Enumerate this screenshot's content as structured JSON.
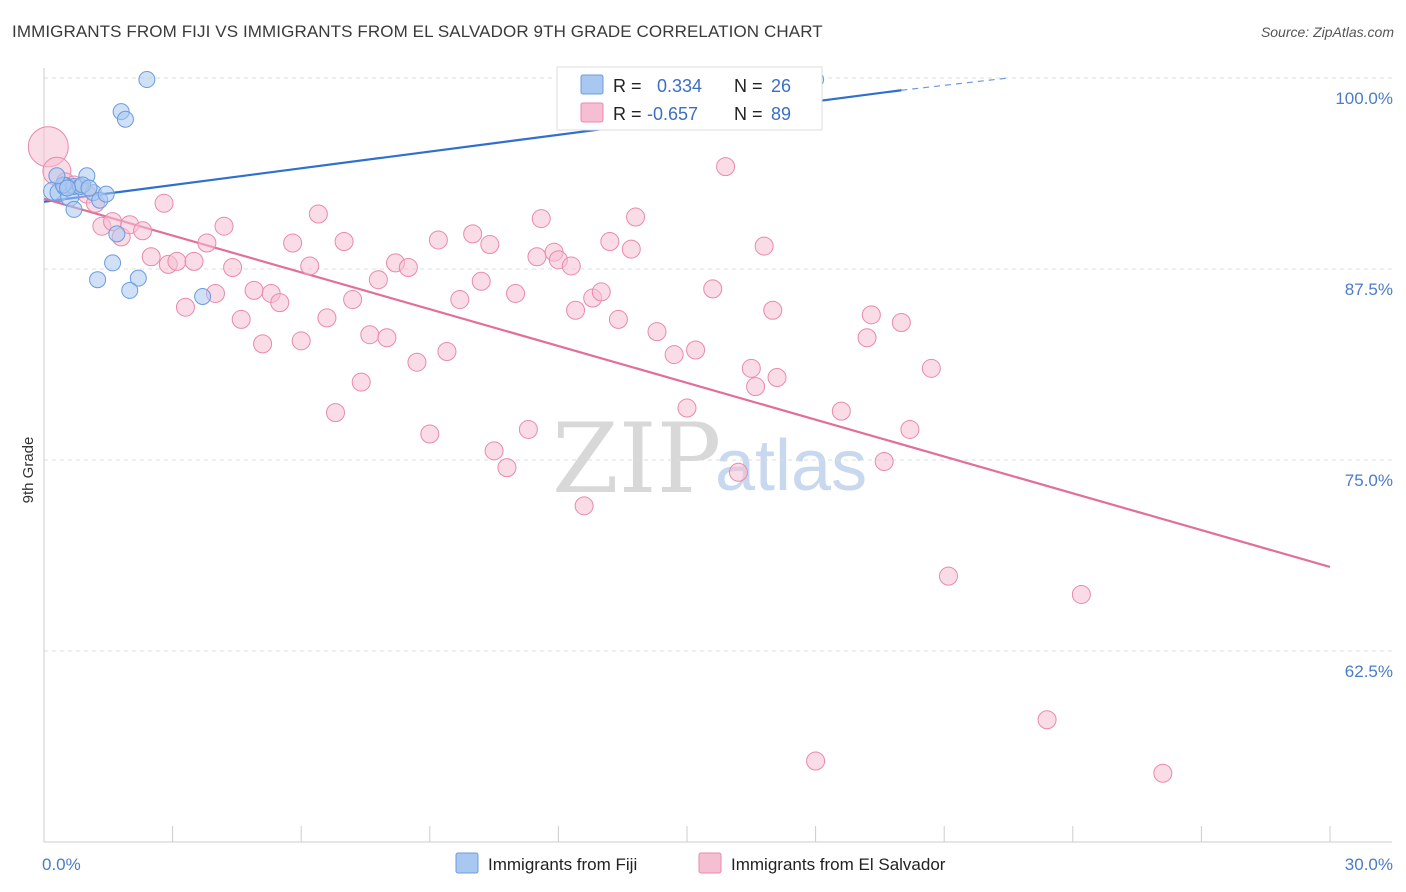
{
  "title": "IMMIGRANTS FROM FIJI VS IMMIGRANTS FROM EL SALVADOR 9TH GRADE CORRELATION CHART",
  "source": "Source: ZipAtlas.com",
  "watermark": {
    "zip": "ZIP",
    "atlas": "atlas"
  },
  "colors": {
    "fiji_fill": "#a9c8f0",
    "fiji_stroke": "#6a9be0",
    "fiji_line": "#2e6fd0",
    "elsal_fill": "#f6bfd1",
    "elsal_stroke": "#e98aaa",
    "elsal_line": "#e0709a",
    "grid": "#dddddd",
    "tick_text": "#4a7cc9"
  },
  "legend_box": {
    "rows": [
      {
        "r_label": "R =",
        "r_value": "0.334",
        "n_label": "N =",
        "n_value": "26"
      },
      {
        "r_label": "R =",
        "r_value": "-0.657",
        "n_label": "N =",
        "n_value": "89"
      }
    ]
  },
  "chart_data": {
    "type": "scatter",
    "title": "IMMIGRANTS FROM FIJI VS IMMIGRANTS FROM EL SALVADOR 9TH GRADE CORRELATION CHART",
    "xlabel": "",
    "ylabel": "9th Grade",
    "xlim": [
      0,
      30
    ],
    "ylim": [
      50,
      100
    ],
    "x_tick_labels": [
      "0.0%",
      "30.0%"
    ],
    "y_tick_labels": [
      "100.0%",
      "87.5%",
      "75.0%",
      "62.5%"
    ],
    "y_tick_values": [
      100,
      87.5,
      75,
      62.5
    ],
    "series": [
      {
        "name": "Immigrants from Fiji",
        "r": 0.334,
        "n": 26,
        "trend": {
          "x0": 0,
          "y0": 91.9,
          "x1": 20,
          "y1": 99.2,
          "dash_to_x": 22.5,
          "dash_to_y": 100.0
        },
        "points": [
          [
            0.2,
            92.6,
            9
          ],
          [
            0.35,
            92.5,
            9
          ],
          [
            0.5,
            92.9,
            9
          ],
          [
            0.6,
            92.2,
            9
          ],
          [
            0.7,
            92.9,
            8
          ],
          [
            0.85,
            92.9,
            8
          ],
          [
            1.0,
            93.6,
            8
          ],
          [
            1.15,
            92.5,
            8
          ],
          [
            1.3,
            92.0,
            8
          ],
          [
            1.45,
            92.4,
            8
          ],
          [
            0.7,
            91.4,
            8
          ],
          [
            1.7,
            89.8,
            8
          ],
          [
            1.6,
            87.9,
            8
          ],
          [
            1.25,
            86.8,
            8
          ],
          [
            2.2,
            86.9,
            8
          ],
          [
            2.0,
            86.1,
            8
          ],
          [
            3.7,
            85.7,
            8
          ],
          [
            1.8,
            97.8,
            8
          ],
          [
            1.9,
            97.3,
            8
          ],
          [
            2.4,
            99.9,
            8
          ],
          [
            18.0,
            99.9,
            8
          ],
          [
            0.45,
            93.0,
            8
          ],
          [
            0.3,
            93.6,
            8
          ],
          [
            0.9,
            93.0,
            8
          ],
          [
            0.55,
            92.8,
            8
          ],
          [
            1.05,
            92.8,
            8
          ]
        ]
      },
      {
        "name": "Immigrants from El Salvador",
        "r": -0.657,
        "n": 89,
        "trend": {
          "x0": 0,
          "y0": 92.1,
          "x1": 30,
          "y1": 68.0
        },
        "points": [
          [
            0.1,
            95.5,
            20
          ],
          [
            0.3,
            93.9,
            14
          ],
          [
            0.5,
            93.2,
            9
          ],
          [
            0.7,
            93.0,
            9
          ],
          [
            1.0,
            92.4,
            9
          ],
          [
            1.2,
            91.8,
            9
          ],
          [
            1.35,
            90.3,
            9
          ],
          [
            1.6,
            90.6,
            9
          ],
          [
            1.8,
            89.6,
            9
          ],
          [
            2.0,
            90.4,
            9
          ],
          [
            2.3,
            90.0,
            9
          ],
          [
            2.5,
            88.3,
            9
          ],
          [
            2.8,
            91.8,
            9
          ],
          [
            2.9,
            87.8,
            9
          ],
          [
            3.1,
            88.0,
            9
          ],
          [
            3.3,
            85.0,
            9
          ],
          [
            3.5,
            88.0,
            9
          ],
          [
            3.8,
            89.2,
            9
          ],
          [
            4.0,
            85.9,
            9
          ],
          [
            4.2,
            90.3,
            9
          ],
          [
            4.4,
            87.6,
            9
          ],
          [
            4.6,
            84.2,
            9
          ],
          [
            4.9,
            86.1,
            9
          ],
          [
            5.1,
            82.6,
            9
          ],
          [
            5.3,
            85.9,
            9
          ],
          [
            5.5,
            85.3,
            9
          ],
          [
            5.8,
            89.2,
            9
          ],
          [
            6.0,
            82.8,
            9
          ],
          [
            6.2,
            87.7,
            9
          ],
          [
            6.4,
            91.1,
            9
          ],
          [
            6.6,
            84.3,
            9
          ],
          [
            6.8,
            78.1,
            9
          ],
          [
            7.0,
            89.3,
            9
          ],
          [
            7.2,
            85.5,
            9
          ],
          [
            7.4,
            80.1,
            9
          ],
          [
            7.6,
            83.2,
            9
          ],
          [
            7.8,
            86.8,
            9
          ],
          [
            8.0,
            83.0,
            9
          ],
          [
            8.2,
            87.9,
            9
          ],
          [
            8.5,
            87.6,
            9
          ],
          [
            8.7,
            81.4,
            9
          ],
          [
            9.0,
            76.7,
            9
          ],
          [
            9.2,
            89.4,
            9
          ],
          [
            9.4,
            82.1,
            9
          ],
          [
            9.7,
            85.5,
            9
          ],
          [
            10.0,
            89.8,
            9
          ],
          [
            10.2,
            86.7,
            9
          ],
          [
            10.4,
            89.1,
            9
          ],
          [
            10.5,
            75.6,
            9
          ],
          [
            10.8,
            74.5,
            9
          ],
          [
            11.0,
            85.9,
            9
          ],
          [
            11.3,
            77.0,
            9
          ],
          [
            11.5,
            88.3,
            9
          ],
          [
            11.6,
            90.8,
            9
          ],
          [
            11.9,
            88.6,
            9
          ],
          [
            12.0,
            88.1,
            9
          ],
          [
            12.3,
            87.7,
            9
          ],
          [
            12.4,
            84.8,
            9
          ],
          [
            12.6,
            72.0,
            9
          ],
          [
            12.8,
            85.6,
            9
          ],
          [
            13.0,
            86.0,
            9
          ],
          [
            13.2,
            89.3,
            9
          ],
          [
            13.4,
            84.2,
            9
          ],
          [
            13.7,
            88.8,
            9
          ],
          [
            13.8,
            90.9,
            9
          ],
          [
            14.3,
            83.4,
            9
          ],
          [
            14.7,
            81.9,
            9
          ],
          [
            15.0,
            78.4,
            9
          ],
          [
            15.2,
            82.2,
            9
          ],
          [
            15.6,
            86.2,
            9
          ],
          [
            15.9,
            94.2,
            9
          ],
          [
            16.2,
            74.2,
            9
          ],
          [
            16.5,
            81.0,
            9
          ],
          [
            16.6,
            79.8,
            9
          ],
          [
            16.8,
            89.0,
            9
          ],
          [
            17.0,
            84.8,
            9
          ],
          [
            17.1,
            80.4,
            9
          ],
          [
            18.0,
            55.3,
            9
          ],
          [
            18.6,
            78.2,
            9
          ],
          [
            19.2,
            83.0,
            9
          ],
          [
            19.3,
            84.5,
            9
          ],
          [
            19.6,
            74.9,
            9
          ],
          [
            20.0,
            84.0,
            9
          ],
          [
            20.2,
            77.0,
            9
          ],
          [
            20.7,
            81.0,
            9
          ],
          [
            21.1,
            67.4,
            9
          ],
          [
            23.4,
            58.0,
            9
          ],
          [
            24.2,
            66.2,
            9
          ],
          [
            26.1,
            54.5,
            9
          ]
        ]
      }
    ],
    "legend": [
      {
        "label": "Immigrants from Fiji"
      },
      {
        "label": "Immigrants from El Salvador"
      }
    ]
  }
}
